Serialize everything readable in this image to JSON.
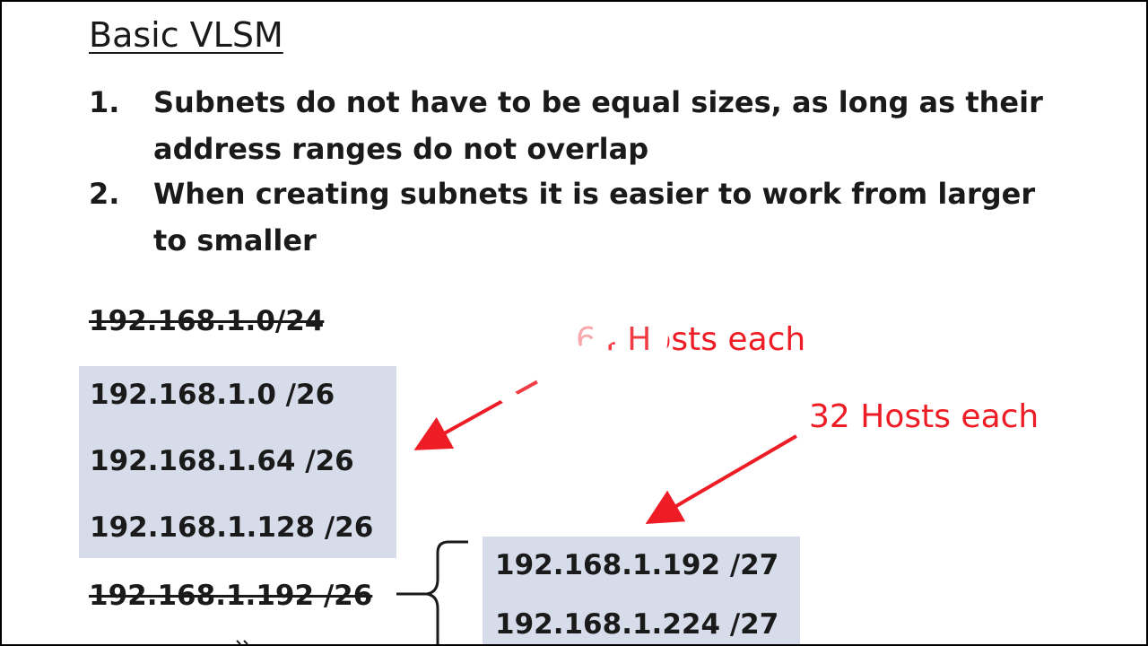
{
  "slide": {
    "title": "Basic VLSM",
    "points": [
      {
        "num": "1.",
        "text": "Subnets do not have to be equal sizes, as long as their address ranges do not overlap"
      },
      {
        "num": "2.",
        "text": "When creating subnets it is easier to work from larger to smaller"
      }
    ],
    "original_network": "192.168.1.0/24",
    "subnets_26": [
      "192.168.1.0 /26",
      "192.168.1.64 /26",
      "192.168.1.128 /26"
    ],
    "struck_subnet": "192.168.1.192 /26",
    "subnets_27": [
      "192.168.1.192 /27",
      "192.168.1.224 /27"
    ],
    "label_64": "64 Hosts each",
    "label_32": "32 Hosts each"
  },
  "player": {
    "play_icon": "play-icon"
  },
  "colors": {
    "annotation_red": "#ee1c25",
    "box_fill": "#d6dce9",
    "text": "#1a1a1a"
  }
}
